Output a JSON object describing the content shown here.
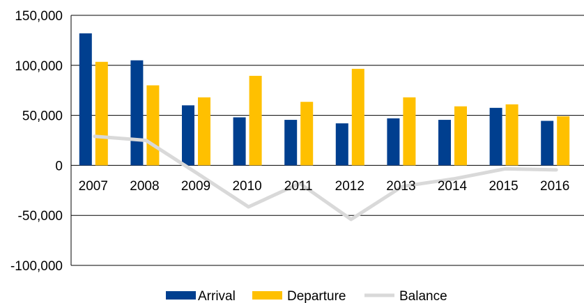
{
  "chart_data": {
    "type": "bar",
    "categories": [
      "2007",
      "2008",
      "2009",
      "2010",
      "2011",
      "2012",
      "2013",
      "2014",
      "2015",
      "2016"
    ],
    "series": [
      {
        "name": "Arrival",
        "type": "bar",
        "color": "#003f8f",
        "values": [
          132000,
          105000,
          60000,
          48000,
          45500,
          42000,
          47000,
          45500,
          57500,
          44500
        ]
      },
      {
        "name": "Departure",
        "type": "bar",
        "color": "#ffc000",
        "values": [
          103500,
          80000,
          68000,
          89500,
          63500,
          96500,
          68000,
          59000,
          61000,
          49000
        ]
      },
      {
        "name": "Balance",
        "type": "line",
        "color": "#d9d9d9",
        "values": [
          29000,
          25000,
          -8000,
          -41500,
          -18000,
          -54000,
          -21000,
          -13500,
          -3500,
          -4500
        ]
      }
    ],
    "ylim": [
      -100000,
      150000
    ],
    "yticks": [
      {
        "value": 150000,
        "label": "150,000"
      },
      {
        "value": 100000,
        "label": "100,000"
      },
      {
        "value": 50000,
        "label": "50,000"
      },
      {
        "value": 0,
        "label": "0"
      },
      {
        "value": -50000,
        "label": "-50,000"
      },
      {
        "value": -100000,
        "label": "-100,000"
      }
    ],
    "grid": true,
    "legend": "bottom",
    "title": "",
    "xlabel": "",
    "ylabel": ""
  }
}
